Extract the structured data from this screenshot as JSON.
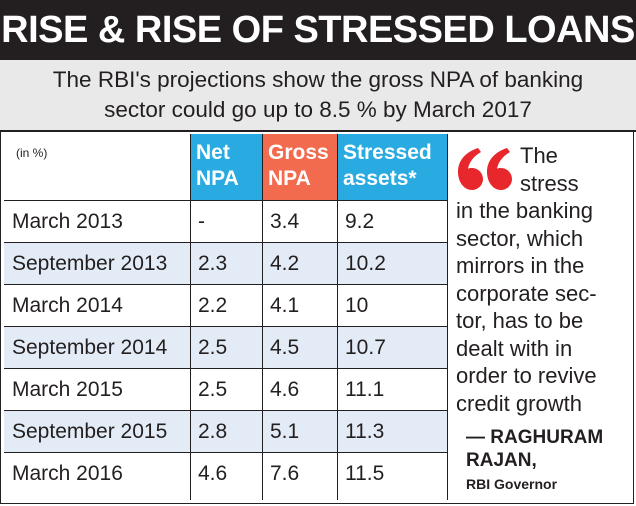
{
  "header": {
    "title": "RISE & RISE OF STRESSED LOANS",
    "subtitle_line1": "The RBI's projections show the gross NPA of banking",
    "subtitle_line2": "sector could go up to 8.5 % by March 2017"
  },
  "chart_data": {
    "type": "table",
    "unit_label": "(in %)",
    "columns": [
      {
        "line1": "Net",
        "line2": "NPA",
        "color": "#29abe2"
      },
      {
        "line1": "Gross",
        "line2": "NPA",
        "color": "#f26b4f"
      },
      {
        "line1": "Stressed",
        "line2": "assets*",
        "color": "#29abe2"
      }
    ],
    "rows": [
      {
        "period": "March 2013",
        "net_npa": "-",
        "gross_npa": "3.4",
        "stressed_assets": "9.2"
      },
      {
        "period": "September 2013",
        "net_npa": "2.3",
        "gross_npa": "4.2",
        "stressed_assets": "10.2"
      },
      {
        "period": "March 2014",
        "net_npa": "2.2",
        "gross_npa": "4.1",
        "stressed_assets": "10"
      },
      {
        "period": "September 2014",
        "net_npa": "2.5",
        "gross_npa": "4.5",
        "stressed_assets": "10.7"
      },
      {
        "period": "March 2015",
        "net_npa": "2.5",
        "gross_npa": "4.6",
        "stressed_assets": "11.1"
      },
      {
        "period": "September 2015",
        "net_npa": "2.8",
        "gross_npa": "5.1",
        "stressed_assets": "11.3"
      },
      {
        "period": "March 2016",
        "net_npa": "4.6",
        "gross_npa": "7.6",
        "stressed_assets": "11.5"
      }
    ]
  },
  "quote": {
    "icon": "quote-mark-icon",
    "color": "#e8272d",
    "lines": [
      "The",
      "stress",
      "in the banking",
      "sector, which",
      "mirrors in the",
      "corporate sec-",
      "tor, has to be",
      "dealt with in",
      "order to revive",
      "credit growth"
    ],
    "author_line1": "— RAGHURAM",
    "author_line2": "RAJAN,",
    "role": "RBI Governor"
  }
}
